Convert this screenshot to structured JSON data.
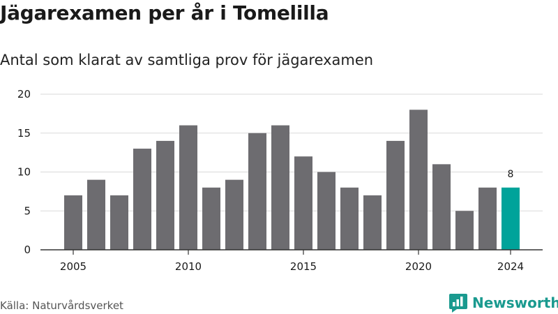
{
  "chart_data": {
    "type": "bar",
    "title": "Jägarexamen per år i Tomelilla",
    "subtitle": "Antal som klarat av samtliga prov för jägarexamen",
    "source": "Källa: Naturvårdsverket",
    "categories": [
      "2005",
      "2006",
      "2007",
      "2008",
      "2009",
      "2010",
      "2011",
      "2012",
      "2013",
      "2014",
      "2015",
      "2016",
      "2017",
      "2018",
      "2019",
      "2020",
      "2021",
      "2022",
      "2023",
      "2024"
    ],
    "values": [
      7,
      9,
      7,
      13,
      14,
      16,
      8,
      9,
      15,
      16,
      12,
      10,
      8,
      7,
      14,
      18,
      11,
      5,
      8,
      8
    ],
    "x_tick_labels": [
      "2005",
      "2010",
      "2015",
      "2020",
      "2024"
    ],
    "y_ticks": [
      0,
      5,
      10,
      15,
      20
    ],
    "ylim": [
      0,
      20
    ],
    "grid": true,
    "highlight": {
      "category": "2024",
      "label": "8"
    },
    "colors": {
      "bar": "#6d6c70",
      "highlight": "#00a39a",
      "grid": "#d9d9d9",
      "axis": "#333333"
    }
  },
  "brand": {
    "name": "Newsworthy",
    "icon": "newsworthy-logo-icon",
    "color": "#1a9a8f"
  }
}
